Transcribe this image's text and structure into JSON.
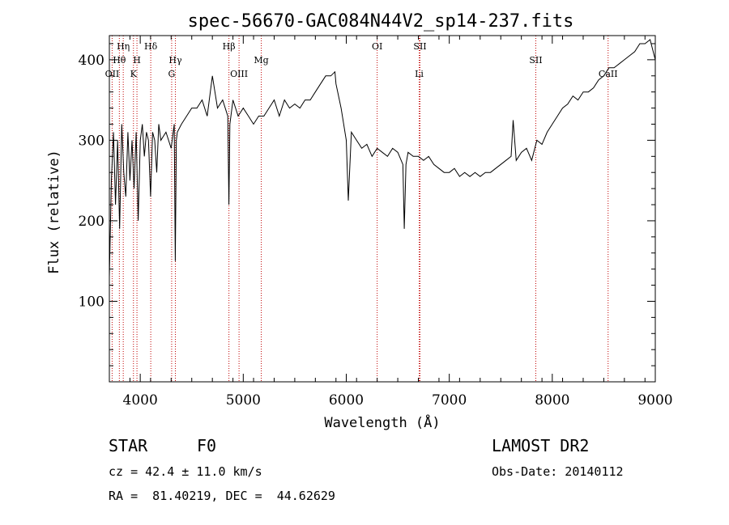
{
  "chart_data": {
    "type": "line",
    "title": "spec-56670-GAC084N44V2_sp14-237.fits",
    "xlabel": "Wavelength (Å)",
    "ylabel": "Flux (relative)",
    "xlim": [
      3700,
      9000
    ],
    "ylim": [
      0,
      430
    ],
    "x_ticks": [
      4000,
      5000,
      6000,
      7000,
      8000,
      9000
    ],
    "y_ticks": [
      100,
      200,
      300,
      400
    ],
    "grid": false,
    "legend": "none",
    "series": [
      {
        "x": [
          3700,
          3720,
          3740,
          3760,
          3780,
          3800,
          3820,
          3840,
          3860,
          3880,
          3900,
          3920,
          3940,
          3960,
          3980,
          4000,
          4020,
          4040,
          4060,
          4080,
          4100,
          4120,
          4140,
          4160,
          4180,
          4200,
          4250,
          4300,
          4330,
          4340,
          4350,
          4360,
          4400,
          4450,
          4500,
          4550,
          4600,
          4650,
          4700,
          4750,
          4800,
          4850,
          4861,
          4870,
          4900,
          4950,
          5000,
          5050,
          5100,
          5150,
          5200,
          5250,
          5300,
          5350,
          5400,
          5450,
          5500,
          5550,
          5600,
          5650,
          5700,
          5750,
          5800,
          5850,
          5890,
          5900,
          5950,
          6000,
          6020,
          6050,
          6100,
          6150,
          6200,
          6250,
          6300,
          6350,
          6400,
          6450,
          6500,
          6550,
          6563,
          6580,
          6600,
          6650,
          6700,
          6750,
          6800,
          6850,
          6900,
          6950,
          7000,
          7050,
          7100,
          7150,
          7200,
          7250,
          7300,
          7350,
          7400,
          7450,
          7500,
          7550,
          7600,
          7620,
          7650,
          7700,
          7750,
          7800,
          7850,
          7900,
          7950,
          8000,
          8050,
          8100,
          8150,
          8200,
          8250,
          8300,
          8350,
          8400,
          8450,
          8500,
          8550,
          8600,
          8650,
          8700,
          8750,
          8800,
          8850,
          8900,
          8950,
          9000
        ],
        "values": [
          130,
          250,
          310,
          220,
          300,
          190,
          320,
          260,
          230,
          310,
          250,
          300,
          240,
          310,
          200,
          300,
          320,
          280,
          310,
          300,
          230,
          310,
          300,
          260,
          320,
          300,
          310,
          290,
          320,
          150,
          300,
          310,
          320,
          330,
          340,
          340,
          350,
          330,
          380,
          340,
          350,
          330,
          220,
          320,
          350,
          330,
          340,
          330,
          320,
          330,
          330,
          340,
          350,
          330,
          350,
          340,
          345,
          340,
          350,
          350,
          360,
          370,
          380,
          380,
          385,
          370,
          340,
          300,
          225,
          310,
          300,
          290,
          295,
          280,
          290,
          285,
          280,
          290,
          285,
          270,
          190,
          270,
          285,
          280,
          280,
          275,
          280,
          270,
          265,
          260,
          260,
          265,
          255,
          260,
          255,
          260,
          255,
          260,
          260,
          265,
          270,
          275,
          280,
          325,
          275,
          285,
          290,
          275,
          300,
          295,
          310,
          320,
          330,
          340,
          345,
          355,
          350,
          360,
          360,
          365,
          375,
          380,
          390,
          390,
          395,
          400,
          405,
          410,
          420,
          420,
          425,
          400
        ]
      }
    ],
    "lines": [
      {
        "label": "Hη",
        "x": 3835,
        "row": 1
      },
      {
        "label": "Hθ",
        "x": 3797,
        "row": 2
      },
      {
        "label": "OII",
        "x": 3727,
        "row": 3
      },
      {
        "label": "H",
        "x": 3968,
        "row": 2
      },
      {
        "label": "K",
        "x": 3934,
        "row": 3
      },
      {
        "label": "Hδ",
        "x": 4102,
        "row": 1
      },
      {
        "label": "Hγ",
        "x": 4341,
        "row": 2
      },
      {
        "label": "G",
        "x": 4305,
        "row": 3
      },
      {
        "label": "Hβ",
        "x": 4861,
        "row": 1
      },
      {
        "label": "OIII",
        "x": 4959,
        "row": 3
      },
      {
        "label": "Mg",
        "x": 5175,
        "row": 2
      },
      {
        "label": "OI",
        "x": 6300,
        "row": 1
      },
      {
        "label": "SII",
        "x": 6716,
        "row": 1
      },
      {
        "label": "Li",
        "x": 6708,
        "row": 3
      },
      {
        "label": "SII",
        "x": 7840,
        "row": 2
      },
      {
        "label": "CaII",
        "x": 8542,
        "row": 3
      }
    ]
  },
  "info": {
    "object_type": "STAR",
    "subclass": "F0",
    "survey": "LAMOST DR2",
    "cz": "cz = 42.4 ± 11.0 km/s",
    "obs_date": "Obs-Date: 20140112",
    "coords": "RA =  81.40219, DEC =  44.62629"
  }
}
